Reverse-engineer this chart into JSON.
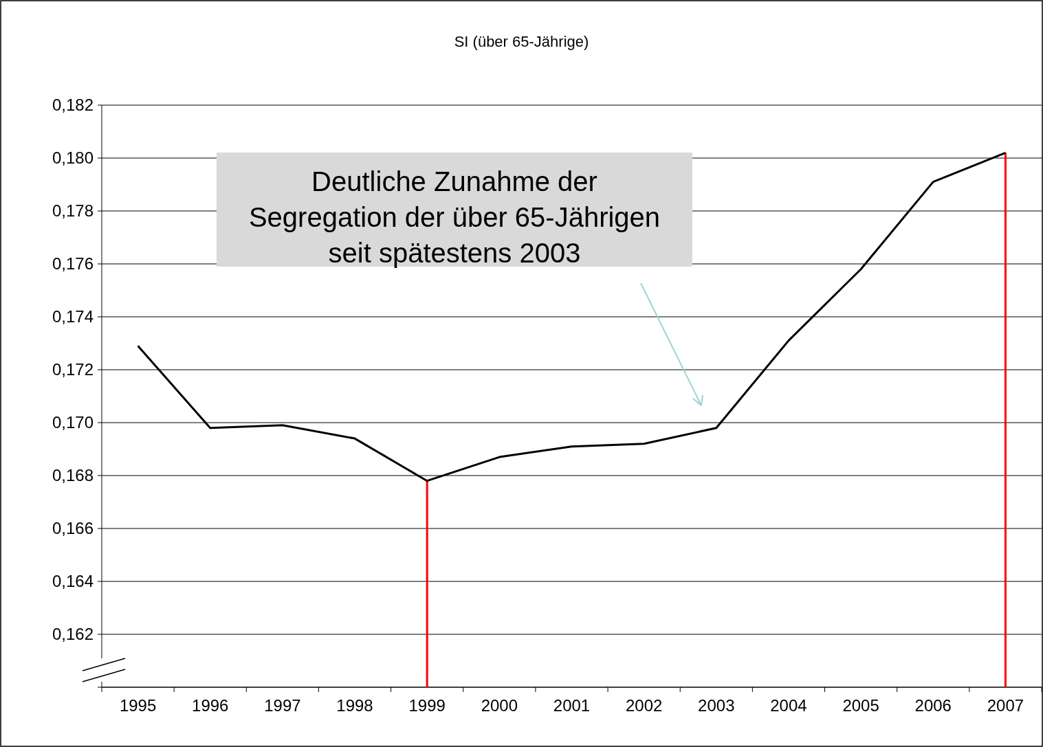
{
  "chart_data": {
    "type": "line",
    "title": "SI (über 65-Jährige)",
    "categories": [
      "1995",
      "1996",
      "1997",
      "1998",
      "1999",
      "2000",
      "2001",
      "2002",
      "2003",
      "2004",
      "2005",
      "2006",
      "2007"
    ],
    "series": [
      {
        "color": "#000000",
        "values": [
          0.1729,
          0.1698,
          0.1699,
          0.1694,
          0.1678,
          0.1687,
          0.1691,
          0.1692,
          0.1698,
          0.1731,
          0.1758,
          0.1791,
          0.1802
        ]
      }
    ],
    "ylim": [
      0.16,
      0.182
    ],
    "yticks": [
      {
        "value": 0.16,
        "label": null
      },
      {
        "value": 0.162,
        "label": "0,162"
      },
      {
        "value": 0.164,
        "label": "0,164"
      },
      {
        "value": 0.166,
        "label": "0,166"
      },
      {
        "value": 0.168,
        "label": "0,168"
      },
      {
        "value": 0.17,
        "label": "0,170"
      },
      {
        "value": 0.172,
        "label": "0,172"
      },
      {
        "value": 0.174,
        "label": "0,174"
      },
      {
        "value": 0.176,
        "label": "0,176"
      },
      {
        "value": 0.178,
        "label": "0,178"
      },
      {
        "value": 0.18,
        "label": "0,180"
      },
      {
        "value": 0.182,
        "label": "0,182"
      }
    ],
    "grid": "y",
    "marker": "none",
    "line_style": "solid",
    "ref_lines": [
      {
        "axis": "x",
        "value": "1999",
        "color": "#ff0000"
      },
      {
        "axis": "x",
        "value": "2007",
        "color": "#ff0000"
      }
    ],
    "annotations": [
      "Deutliche Zunahme der\nSegregation der über 65-Jährigen\nseit spätestens 2003"
    ]
  }
}
